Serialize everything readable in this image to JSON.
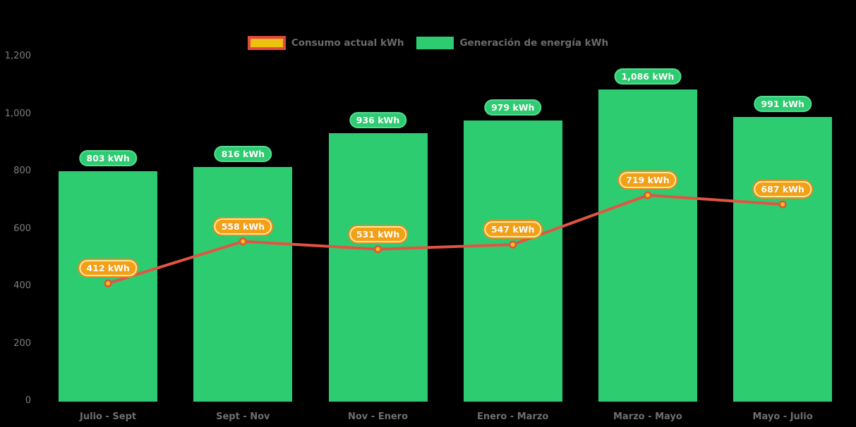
{
  "chart_data": {
    "type": "combo-bar-line",
    "title": "",
    "categories": [
      "Julio - Sept",
      "Sept - Nov",
      "Nov - Enero",
      "Enero - Marzo",
      "Marzo - Mayo",
      "Mayo - Julio"
    ],
    "series": [
      {
        "name": "Consumo actual kWh",
        "type": "line",
        "values": [
          412,
          558,
          531,
          547,
          719,
          687
        ],
        "labels": [
          "412 kWh",
          "558 kWh",
          "531 kWh",
          "547 kWh",
          "719 kWh",
          "687 kWh"
        ],
        "line_color": "#e25443",
        "marker_fill": "#f4bc1c",
        "marker_stroke": "#e2553a",
        "label_bg": "#f2a117",
        "label_border": "#fce9a0",
        "label_ring": "#e8891c",
        "label_text_color": "#ffffff"
      },
      {
        "name": "Generación de energía kWh",
        "type": "bar",
        "values": [
          803,
          816,
          936,
          979,
          1086,
          991
        ],
        "labels": [
          "803 kWh",
          "816 kWh",
          "936 kWh",
          "979 kWh",
          "1,086 kWh",
          "991 kWh"
        ],
        "bar_color": "#2ecc71",
        "label_bg": "#2ecc71",
        "label_border": "#55dc93",
        "label_text_color": "#ffffff"
      }
    ],
    "y_axis": {
      "range": [
        0,
        1200
      ],
      "ticks": [
        {
          "label": "1,200",
          "value": 1200
        },
        {
          "label": "1,000",
          "value": 1000
        },
        {
          "label": "800",
          "value": 800
        },
        {
          "label": "600",
          "value": 600
        },
        {
          "label": "400",
          "value": 400
        },
        {
          "label": "200",
          "value": 200
        },
        {
          "label": "0",
          "value": 0
        }
      ]
    },
    "grid": false,
    "legend_position": "top",
    "colors": {
      "background": "#000000",
      "y_axis_text": "#7f7f7f",
      "x_axis_text": "#6f6f6f",
      "legend_text": "#6b6b6b",
      "legend_consumo_swatch_border": "#e2493d",
      "legend_consumo_swatch_fill": "#eec111",
      "legend_generacion_swatch_fill": "#2ecc71"
    }
  }
}
